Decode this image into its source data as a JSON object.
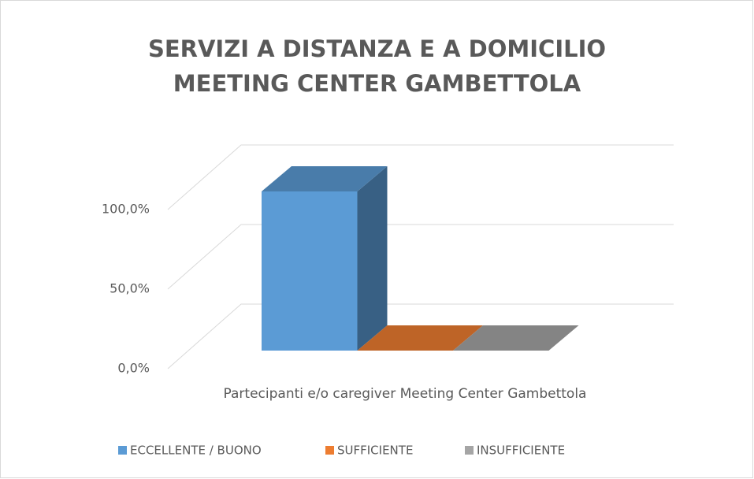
{
  "chart_data": {
    "type": "bar3d",
    "title": "SERVIZI A DISTANZA E A DOMICILIO\nMEETING CENTER GAMBETTOLA",
    "categories": [
      "Partecipanti e/o caregiver Meeting Center Gambettola"
    ],
    "series": [
      {
        "name": "ECCELLENTE / BUONO",
        "color": "#5b9bd5",
        "values": [
          100
        ]
      },
      {
        "name": "SUFFICIENTE",
        "color": "#ed7d31",
        "values": [
          0
        ]
      },
      {
        "name": "INSUFFICIENTE",
        "color": "#a5a5a5",
        "values": [
          0
        ]
      }
    ],
    "ylim": [
      0,
      100
    ],
    "yticks": [
      {
        "value": 0,
        "label": "0,0%"
      },
      {
        "value": 50,
        "label": "50,0%"
      },
      {
        "value": 100,
        "label": "100,0%"
      }
    ],
    "grid": true,
    "legend": "bottom"
  }
}
